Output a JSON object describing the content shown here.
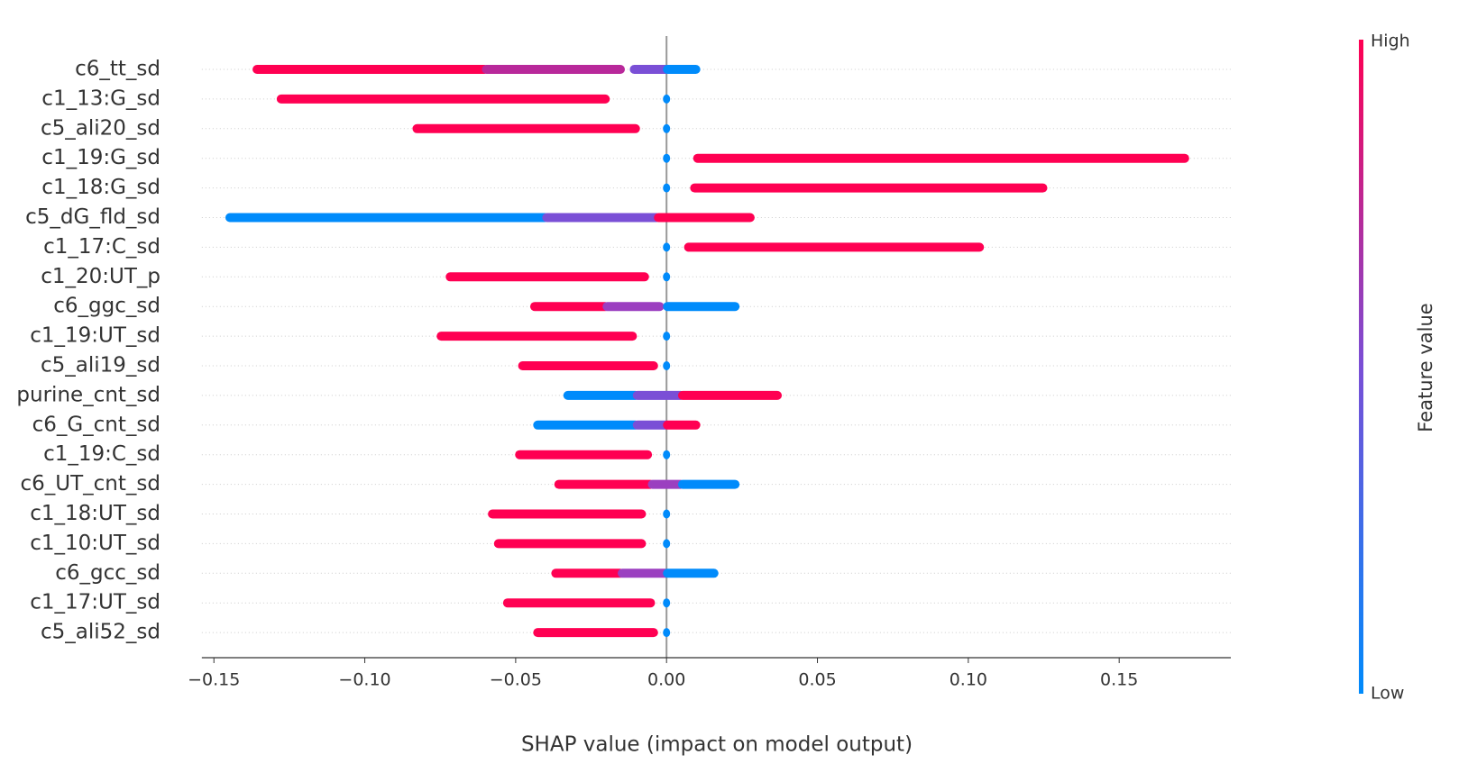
{
  "chart_data": {
    "type": "beeswarm",
    "xlabel": "SHAP value (impact on model output)",
    "xlim": [
      -0.154,
      0.187
    ],
    "xticks": [
      {
        "value": -0.15,
        "label": "−0.15"
      },
      {
        "value": -0.1,
        "label": "−0.10"
      },
      {
        "value": -0.05,
        "label": "−0.05"
      },
      {
        "value": 0,
        "label": "0.00"
      },
      {
        "value": 0.05,
        "label": "0.05"
      },
      {
        "value": 0.1,
        "label": "0.10"
      },
      {
        "value": 0.15,
        "label": "0.15"
      }
    ],
    "colorbar": {
      "label": "Feature value",
      "high": "High",
      "low": "Low",
      "colors": [
        "#008bfb",
        "#7a4fd6",
        "#ff0052"
      ]
    },
    "features": [
      {
        "name": "c6_tt_sd",
        "segments": [
          {
            "range": [
              -0.136,
              -0.06
            ],
            "color": "#ff0052"
          },
          {
            "range": [
              -0.06,
              -0.015
            ],
            "color": "#b8289a"
          },
          {
            "range": [
              -0.011,
              0
            ],
            "color": "#7a4fd6"
          },
          {
            "range": [
              0,
              0.01
            ],
            "color": "#008bfb"
          }
        ]
      },
      {
        "name": "c1_13:G_sd",
        "segments": [
          {
            "range": [
              -0.128,
              -0.02
            ],
            "color": "#ff0052"
          },
          {
            "range": [
              0,
              0
            ],
            "color": "#008bfb"
          }
        ]
      },
      {
        "name": "c5_ali20_sd",
        "segments": [
          {
            "range": [
              -0.083,
              -0.01
            ],
            "color": "#ff0052"
          },
          {
            "range": [
              0,
              0
            ],
            "color": "#008bfb"
          }
        ]
      },
      {
        "name": "c1_19:G_sd",
        "segments": [
          {
            "range": [
              0.01,
              0.172
            ],
            "color": "#ff0052"
          },
          {
            "range": [
              0,
              0
            ],
            "color": "#008bfb"
          }
        ]
      },
      {
        "name": "c1_18:G_sd",
        "segments": [
          {
            "range": [
              0.009,
              0.125
            ],
            "color": "#ff0052"
          },
          {
            "range": [
              0,
              0
            ],
            "color": "#008bfb"
          }
        ]
      },
      {
        "name": "c5_dG_fld_sd",
        "segments": [
          {
            "range": [
              -0.145,
              -0.04
            ],
            "color": "#008bfb"
          },
          {
            "range": [
              -0.04,
              -0.003
            ],
            "color": "#7a4fd6"
          },
          {
            "range": [
              -0.003,
              0.028
            ],
            "color": "#ff0052"
          }
        ]
      },
      {
        "name": "c1_17:C_sd",
        "segments": [
          {
            "range": [
              0.007,
              0.104
            ],
            "color": "#ff0052"
          },
          {
            "range": [
              0,
              0
            ],
            "color": "#008bfb"
          }
        ]
      },
      {
        "name": "c1_20:UT_p",
        "segments": [
          {
            "range": [
              -0.072,
              -0.007
            ],
            "color": "#ff0052"
          },
          {
            "range": [
              0,
              0
            ],
            "color": "#008bfb"
          }
        ]
      },
      {
        "name": "c6_ggc_sd",
        "segments": [
          {
            "range": [
              -0.044,
              -0.02
            ],
            "color": "#ff0052"
          },
          {
            "range": [
              -0.02,
              -0.002
            ],
            "color": "#9b3fc0"
          },
          {
            "range": [
              0,
              0.023
            ],
            "color": "#008bfb"
          }
        ]
      },
      {
        "name": "c1_19:UT_sd",
        "segments": [
          {
            "range": [
              -0.075,
              -0.011
            ],
            "color": "#ff0052"
          },
          {
            "range": [
              0,
              0
            ],
            "color": "#008bfb"
          }
        ]
      },
      {
        "name": "c5_ali19_sd",
        "segments": [
          {
            "range": [
              -0.048,
              -0.004
            ],
            "color": "#ff0052"
          },
          {
            "range": [
              0,
              0
            ],
            "color": "#008bfb"
          }
        ]
      },
      {
        "name": "purine_cnt_sd",
        "segments": [
          {
            "range": [
              -0.033,
              -0.01
            ],
            "color": "#008bfb"
          },
          {
            "range": [
              -0.01,
              0.005
            ],
            "color": "#7a4fd6"
          },
          {
            "range": [
              0.005,
              0.037
            ],
            "color": "#ff0052"
          }
        ]
      },
      {
        "name": "c6_G_cnt_sd",
        "segments": [
          {
            "range": [
              -0.043,
              -0.01
            ],
            "color": "#008bfb"
          },
          {
            "range": [
              -0.01,
              0
            ],
            "color": "#7a4fd6"
          },
          {
            "range": [
              0,
              0.01
            ],
            "color": "#ff0052"
          }
        ]
      },
      {
        "name": "c1_19:C_sd",
        "segments": [
          {
            "range": [
              -0.049,
              -0.006
            ],
            "color": "#ff0052"
          },
          {
            "range": [
              0,
              0
            ],
            "color": "#008bfb"
          }
        ]
      },
      {
        "name": "c6_UT_cnt_sd",
        "segments": [
          {
            "range": [
              -0.036,
              -0.005
            ],
            "color": "#ff0052"
          },
          {
            "range": [
              -0.005,
              0.005
            ],
            "color": "#9b3fc0"
          },
          {
            "range": [
              0.005,
              0.023
            ],
            "color": "#008bfb"
          }
        ]
      },
      {
        "name": "c1_18:UT_sd",
        "segments": [
          {
            "range": [
              -0.058,
              -0.008
            ],
            "color": "#ff0052"
          },
          {
            "range": [
              0,
              0
            ],
            "color": "#008bfb"
          }
        ]
      },
      {
        "name": "c1_10:UT_sd",
        "segments": [
          {
            "range": [
              -0.056,
              -0.008
            ],
            "color": "#ff0052"
          },
          {
            "range": [
              0,
              0
            ],
            "color": "#008bfb"
          }
        ]
      },
      {
        "name": "c6_gcc_sd",
        "segments": [
          {
            "range": [
              -0.037,
              -0.015
            ],
            "color": "#ff0052"
          },
          {
            "range": [
              -0.015,
              0
            ],
            "color": "#9b3fc0"
          },
          {
            "range": [
              0,
              0.016
            ],
            "color": "#008bfb"
          }
        ]
      },
      {
        "name": "c1_17:UT_sd",
        "segments": [
          {
            "range": [
              -0.053,
              -0.005
            ],
            "color": "#ff0052"
          },
          {
            "range": [
              0,
              0
            ],
            "color": "#008bfb"
          }
        ]
      },
      {
        "name": "c5_ali52_sd",
        "segments": [
          {
            "range": [
              -0.043,
              -0.004
            ],
            "color": "#ff0052"
          },
          {
            "range": [
              0,
              0
            ],
            "color": "#008bfb"
          }
        ]
      }
    ]
  }
}
